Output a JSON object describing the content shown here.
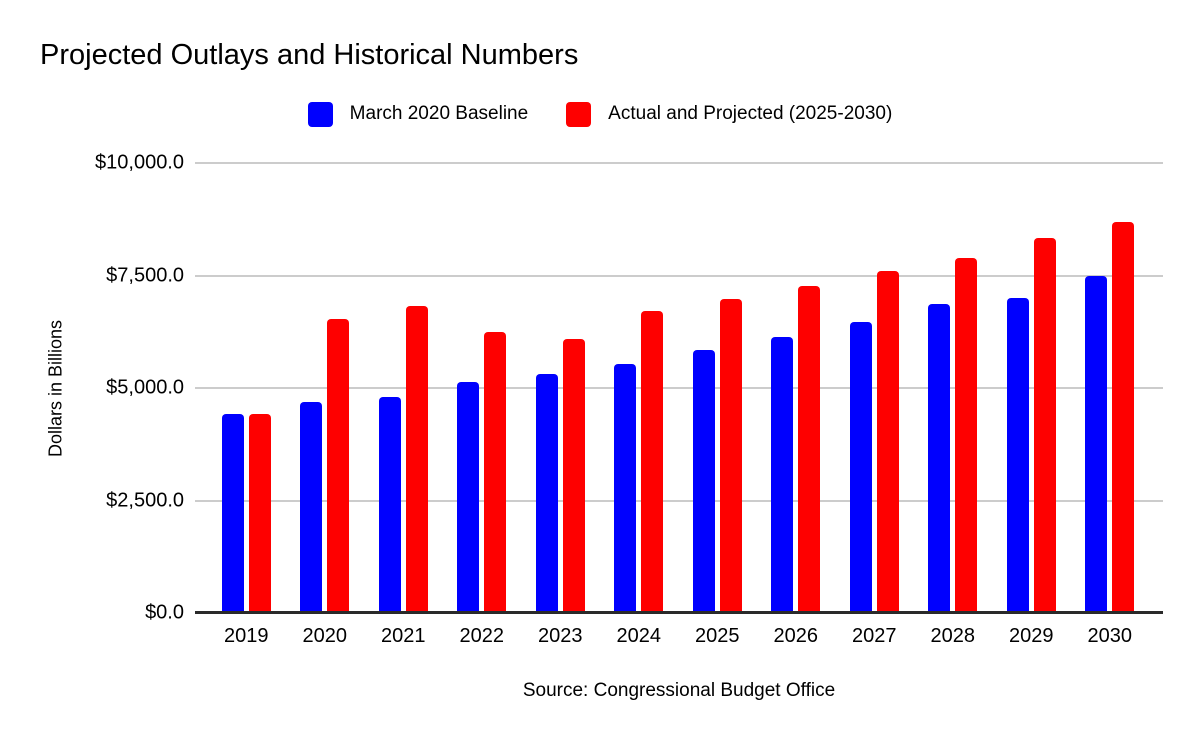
{
  "chart_data": {
    "type": "bar",
    "title": "Projected Outlays and Historical Numbers",
    "ylabel": "Dollars in Billions",
    "xlabel": "",
    "source": "Source: Congressional Budget Office",
    "categories": [
      "2019",
      "2020",
      "2021",
      "2022",
      "2023",
      "2024",
      "2025",
      "2026",
      "2027",
      "2028",
      "2029",
      "2030"
    ],
    "series": [
      {
        "name": "March 2020 Baseline",
        "color": "#0000fe",
        "values": [
          4420,
          4680,
          4810,
          5130,
          5310,
          5530,
          5840,
          6130,
          6470,
          6870,
          7000,
          7490
        ]
      },
      {
        "name": "Actual and Projected (2025-2030)",
        "color": "#fe0000",
        "values": [
          4420,
          6530,
          6820,
          6240,
          6090,
          6710,
          6980,
          7270,
          7600,
          7890,
          8330,
          8690
        ]
      }
    ],
    "ylim": [
      0,
      10000
    ],
    "y_ticks": [
      "$10,000.0",
      "$7,500.0",
      "$5,000.0",
      "$2,500.0",
      "$0.0"
    ],
    "grid": true,
    "legend_position": "top",
    "background_color": "#ffffff",
    "gridline_color": "#cccccc",
    "axis_line_color": "#2a2a2a"
  }
}
